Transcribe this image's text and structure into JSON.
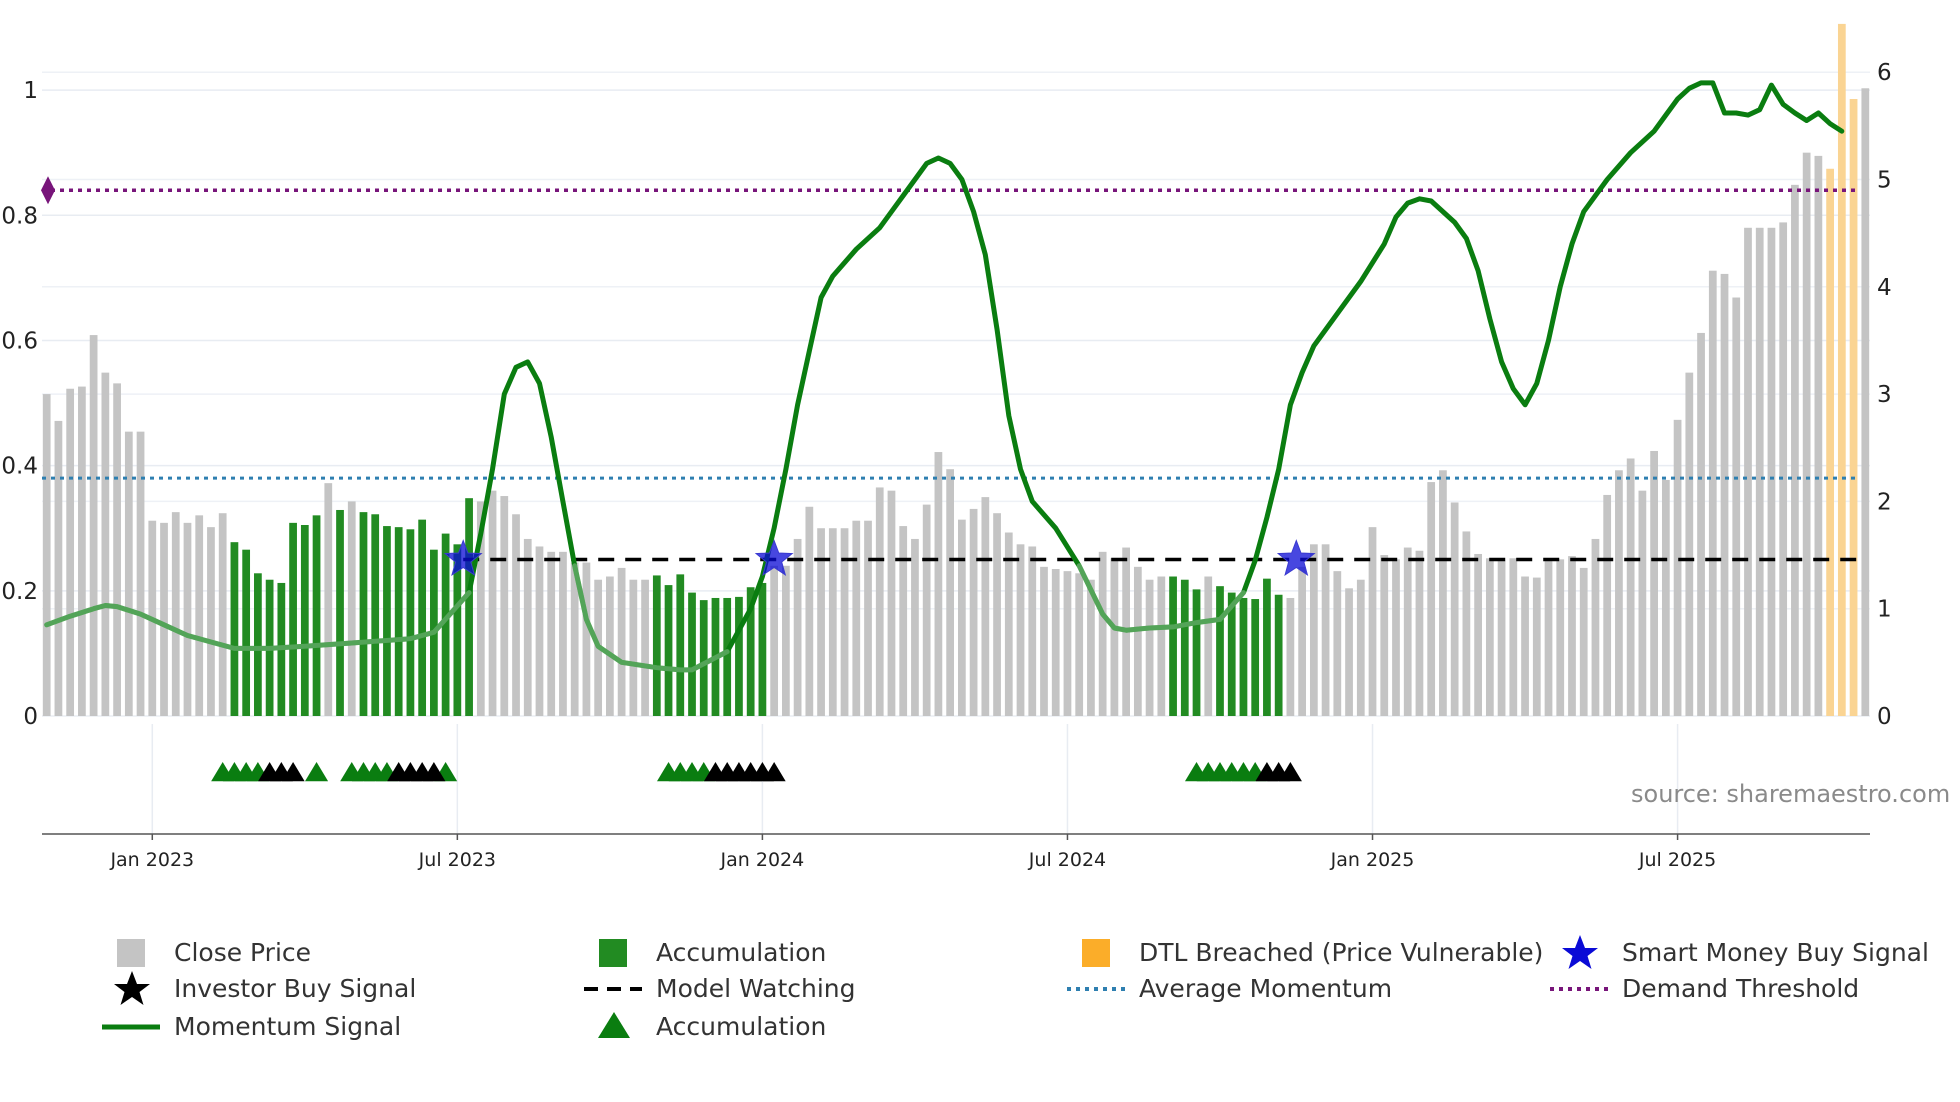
{
  "chart_data": {
    "type": "bar",
    "title": "",
    "left_axis": {
      "ylim": [
        0,
        1.08
      ],
      "ticks": [
        0,
        0.2,
        0.4,
        0.6,
        0.8,
        1
      ],
      "tick_labels": [
        "0",
        "0.2",
        "0.4",
        "0.6",
        "0.8",
        "1"
      ]
    },
    "right_axis": {
      "ylim": [
        0,
        6.3
      ],
      "ticks": [
        0,
        1,
        2,
        3,
        4,
        5,
        6
      ],
      "tick_labels": [
        "0",
        "1",
        "2",
        "3",
        "4",
        "5",
        "6"
      ]
    },
    "x_ticks": [
      {
        "week": 13,
        "label": "Jan 2023"
      },
      {
        "week": 39,
        "label": "Jul 2023"
      },
      {
        "week": 65,
        "label": "Jan 2024"
      },
      {
        "week": 91,
        "label": "Jul 2024"
      },
      {
        "week": 117,
        "label": "Jan 2025"
      },
      {
        "week": 143,
        "label": "Jul 2025"
      }
    ],
    "x_range": [
      3.6,
      159.4
    ],
    "close_price": [
      3.0,
      2.75,
      3.05,
      3.07,
      3.55,
      3.2,
      3.1,
      2.65,
      2.65,
      1.82,
      1.8,
      1.9,
      1.8,
      1.87,
      1.76,
      1.89,
      1.62,
      1.55,
      1.33,
      1.27,
      1.24,
      1.8,
      1.78,
      1.87,
      2.17,
      1.92,
      2.0,
      1.9,
      1.88,
      1.77,
      1.76,
      1.74,
      1.83,
      1.55,
      1.7,
      1.6,
      2.03,
      2.0,
      2.1,
      2.05,
      1.88,
      1.65,
      1.58,
      1.53,
      1.53,
      1.43,
      1.43,
      1.27,
      1.3,
      1.38,
      1.27,
      1.27,
      1.31,
      1.22,
      1.32,
      1.15,
      1.08,
      1.1,
      1.1,
      1.11,
      1.2,
      1.24,
      1.4,
      1.4,
      1.65,
      1.95,
      1.75,
      1.75,
      1.75,
      1.82,
      1.82,
      2.13,
      2.1,
      1.77,
      1.65,
      1.97,
      2.46,
      2.3,
      1.83,
      1.93,
      2.04,
      1.89,
      1.71,
      1.6,
      1.58,
      1.39,
      1.37,
      1.35,
      1.33,
      1.27,
      1.53,
      1.47,
      1.57,
      1.39,
      1.27,
      1.3,
      1.3,
      1.27,
      1.18,
      1.3,
      1.21,
      1.15,
      1.1,
      1.09,
      1.28,
      1.13,
      1.1,
      1.39,
      1.6,
      1.6,
      1.35,
      1.19,
      1.27,
      1.76,
      1.5,
      1.46,
      1.57,
      1.54,
      2.18,
      2.29,
      1.99,
      1.72,
      1.51,
      1.47,
      1.45,
      1.47,
      1.3,
      1.29,
      1.46,
      1.46,
      1.49,
      1.38,
      1.65,
      2.06,
      2.29,
      2.4,
      2.1,
      2.47,
      2.2,
      2.76,
      3.2,
      3.57,
      4.15,
      4.12,
      3.9,
      4.55,
      4.55,
      4.55,
      4.6,
      4.95,
      5.25,
      5.22,
      5.1,
      6.45,
      5.75,
      5.85
    ],
    "accumulation_weeks": [
      20,
      21,
      22,
      23,
      24,
      25,
      26,
      27,
      29,
      31,
      32,
      33,
      34,
      35,
      36,
      37,
      38,
      39,
      40,
      56,
      57,
      58,
      59,
      60,
      61,
      62,
      63,
      64,
      65,
      100,
      101,
      102,
      104,
      105,
      106,
      107,
      108,
      109
    ],
    "dtl_breached_weeks": [
      156,
      157,
      158
    ],
    "momentum_signal": [
      [
        4,
        0.85
      ],
      [
        6,
        0.93
      ],
      [
        8,
        1.0
      ],
      [
        9,
        1.03
      ],
      [
        10,
        1.02
      ],
      [
        12,
        0.95
      ],
      [
        14,
        0.85
      ],
      [
        16,
        0.75
      ],
      [
        18,
        0.69
      ],
      [
        20,
        0.63
      ],
      [
        23,
        0.63
      ],
      [
        26,
        0.65
      ],
      [
        30,
        0.68
      ],
      [
        35,
        0.72
      ],
      [
        37,
        0.78
      ],
      [
        40,
        1.15
      ],
      [
        41,
        1.7
      ],
      [
        42,
        2.3
      ],
      [
        43,
        3.0
      ],
      [
        44,
        3.25
      ],
      [
        45,
        3.3
      ],
      [
        46,
        3.1
      ],
      [
        47,
        2.6
      ],
      [
        48,
        2.0
      ],
      [
        49,
        1.4
      ],
      [
        50,
        0.9
      ],
      [
        51,
        0.65
      ],
      [
        53,
        0.5
      ],
      [
        56,
        0.45
      ],
      [
        58,
        0.43
      ],
      [
        59,
        0.43
      ],
      [
        62,
        0.6
      ],
      [
        64,
        1.0
      ],
      [
        65,
        1.3
      ],
      [
        66,
        1.75
      ],
      [
        67,
        2.3
      ],
      [
        68,
        2.9
      ],
      [
        69,
        3.4
      ],
      [
        70,
        3.9
      ],
      [
        71,
        4.1
      ],
      [
        73,
        4.35
      ],
      [
        75,
        4.55
      ],
      [
        77,
        4.85
      ],
      [
        79,
        5.15
      ],
      [
        80,
        5.2
      ],
      [
        81,
        5.15
      ],
      [
        82,
        5.0
      ],
      [
        83,
        4.7
      ],
      [
        84,
        4.3
      ],
      [
        85,
        3.6
      ],
      [
        86,
        2.8
      ],
      [
        87,
        2.3
      ],
      [
        88,
        2.0
      ],
      [
        90,
        1.75
      ],
      [
        92,
        1.4
      ],
      [
        94,
        0.95
      ],
      [
        95,
        0.82
      ],
      [
        96,
        0.8
      ],
      [
        98,
        0.82
      ],
      [
        100,
        0.83
      ],
      [
        102,
        0.87
      ],
      [
        104,
        0.9
      ],
      [
        106,
        1.15
      ],
      [
        107,
        1.45
      ],
      [
        108,
        1.85
      ],
      [
        109,
        2.3
      ],
      [
        110,
        2.9
      ],
      [
        111,
        3.2
      ],
      [
        112,
        3.45
      ],
      [
        114,
        3.75
      ],
      [
        116,
        4.05
      ],
      [
        118,
        4.4
      ],
      [
        119,
        4.65
      ],
      [
        120,
        4.78
      ],
      [
        121,
        4.82
      ],
      [
        122,
        4.8
      ],
      [
        124,
        4.6
      ],
      [
        125,
        4.45
      ],
      [
        126,
        4.15
      ],
      [
        127,
        3.7
      ],
      [
        128,
        3.3
      ],
      [
        129,
        3.05
      ],
      [
        130,
        2.9
      ],
      [
        131,
        3.1
      ],
      [
        132,
        3.5
      ],
      [
        133,
        4.0
      ],
      [
        134,
        4.4
      ],
      [
        135,
        4.7
      ],
      [
        137,
        5.0
      ],
      [
        139,
        5.25
      ],
      [
        141,
        5.45
      ],
      [
        142,
        5.6
      ],
      [
        143,
        5.75
      ],
      [
        144,
        5.85
      ],
      [
        145,
        5.9
      ],
      [
        146,
        5.9
      ],
      [
        147,
        5.62
      ],
      [
        148,
        5.62
      ],
      [
        149,
        5.6
      ],
      [
        150,
        5.65
      ],
      [
        151,
        5.88
      ],
      [
        152,
        5.7
      ],
      [
        153,
        5.62
      ],
      [
        154,
        5.55
      ],
      [
        155,
        5.62
      ],
      [
        156,
        5.52
      ],
      [
        157,
        5.45
      ]
    ],
    "average_momentum": 0.38,
    "demand_threshold": 0.84,
    "model_watching": 0.25,
    "investor_buy_signals": [
      23,
      24,
      25,
      34,
      35,
      36,
      37,
      61,
      62,
      63,
      64,
      65,
      66,
      108,
      109,
      110
    ],
    "accumulation_markers": [
      19,
      20,
      21,
      22,
      27,
      30,
      31,
      32,
      33,
      38,
      57,
      58,
      59,
      60,
      102,
      103,
      104,
      105,
      106,
      107
    ],
    "smart_money_signals": [
      39.5,
      66,
      110.5
    ],
    "colors": {
      "close_price": "#c4c4c4",
      "accumulation": "#228b22",
      "dtl": "#fad493",
      "momentum": "#0a7d10",
      "average_momentum": "#2e7fb0",
      "demand_threshold": "#78157a",
      "smart_money": "#0a0ad6",
      "investor": "#000000"
    }
  },
  "legend": [
    {
      "key": "close_price",
      "label": "Close Price"
    },
    {
      "key": "accumulation_bar",
      "label": "Accumulation"
    },
    {
      "key": "dtl",
      "label": "DTL Breached (Price Vulnerable)"
    },
    {
      "key": "smart_money",
      "label": "Smart Money Buy Signal"
    },
    {
      "key": "investor",
      "label": "Investor Buy Signal"
    },
    {
      "key": "model_watching",
      "label": "Model Watching"
    },
    {
      "key": "average_momentum",
      "label": "Average Momentum"
    },
    {
      "key": "demand_threshold",
      "label": "Demand Threshold"
    },
    {
      "key": "momentum",
      "label": "Momentum Signal"
    },
    {
      "key": "accumulation_marker",
      "label": "Accumulation"
    }
  ],
  "source": "source: sharemaestro.com"
}
